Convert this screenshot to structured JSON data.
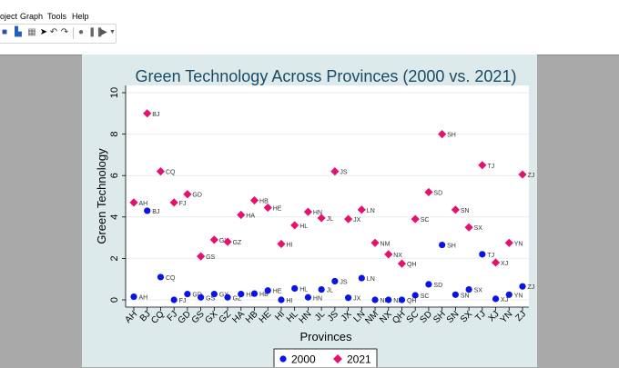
{
  "menu": {
    "project": "oject",
    "graph": "Graph",
    "tools": "Tools",
    "help": "Help"
  },
  "toolbar": {
    "icons": [
      "save-icon",
      "bar-chart-icon",
      "grid-icon",
      "pointer-icon",
      "undo-icon",
      "redo-icon",
      "record-icon",
      "pause-icon",
      "play-icon",
      "dropdown-icon"
    ]
  },
  "colors": {
    "workspace": "#a9a9a9",
    "graph_bg": "#ddeaeb",
    "plot_bg": "#ffffff",
    "series_2000": "#0a14e6",
    "series_2021": "#e6106f"
  },
  "chart_data": {
    "type": "scatter",
    "title": "Green Technology Across Provinces (2000 vs. 2021)",
    "xlabel": "Provinces",
    "ylabel": "Green Technology",
    "ylim": [
      0,
      10
    ],
    "yticks": [
      0,
      2,
      4,
      6,
      8,
      10
    ],
    "grid": true,
    "legend": "bottom",
    "categories": [
      "AH",
      "BJ",
      "CQ",
      "FJ",
      "GD",
      "GS",
      "GX",
      "GZ",
      "HA",
      "HB",
      "HE",
      "HI",
      "HL",
      "HN",
      "JL",
      "JS",
      "JX",
      "LN",
      "NM",
      "NX",
      "QH",
      "SC",
      "SD",
      "SH",
      "SN",
      "SX",
      "TJ",
      "XJ",
      "YN",
      "ZJ"
    ],
    "series": [
      {
        "name": "2000",
        "marker": "circle",
        "values": [
          0.15,
          4.3,
          1.1,
          0.0,
          0.28,
          0.12,
          0.28,
          0.12,
          0.28,
          0.3,
          0.45,
          0.0,
          0.55,
          0.12,
          0.5,
          0.9,
          0.1,
          1.05,
          0.0,
          0.0,
          0.0,
          0.22,
          0.75,
          2.65,
          0.25,
          0.5,
          2.2,
          0.05,
          0.25,
          0.65
        ]
      },
      {
        "name": "2021",
        "marker": "diamond",
        "values": [
          4.7,
          9.0,
          6.2,
          4.7,
          5.1,
          2.1,
          2.9,
          2.8,
          4.1,
          4.8,
          4.45,
          2.7,
          3.6,
          4.25,
          3.95,
          6.2,
          3.9,
          4.35,
          2.75,
          2.2,
          1.75,
          3.9,
          5.2,
          8.0,
          4.35,
          3.5,
          6.5,
          1.8,
          2.75,
          6.05
        ]
      }
    ]
  }
}
